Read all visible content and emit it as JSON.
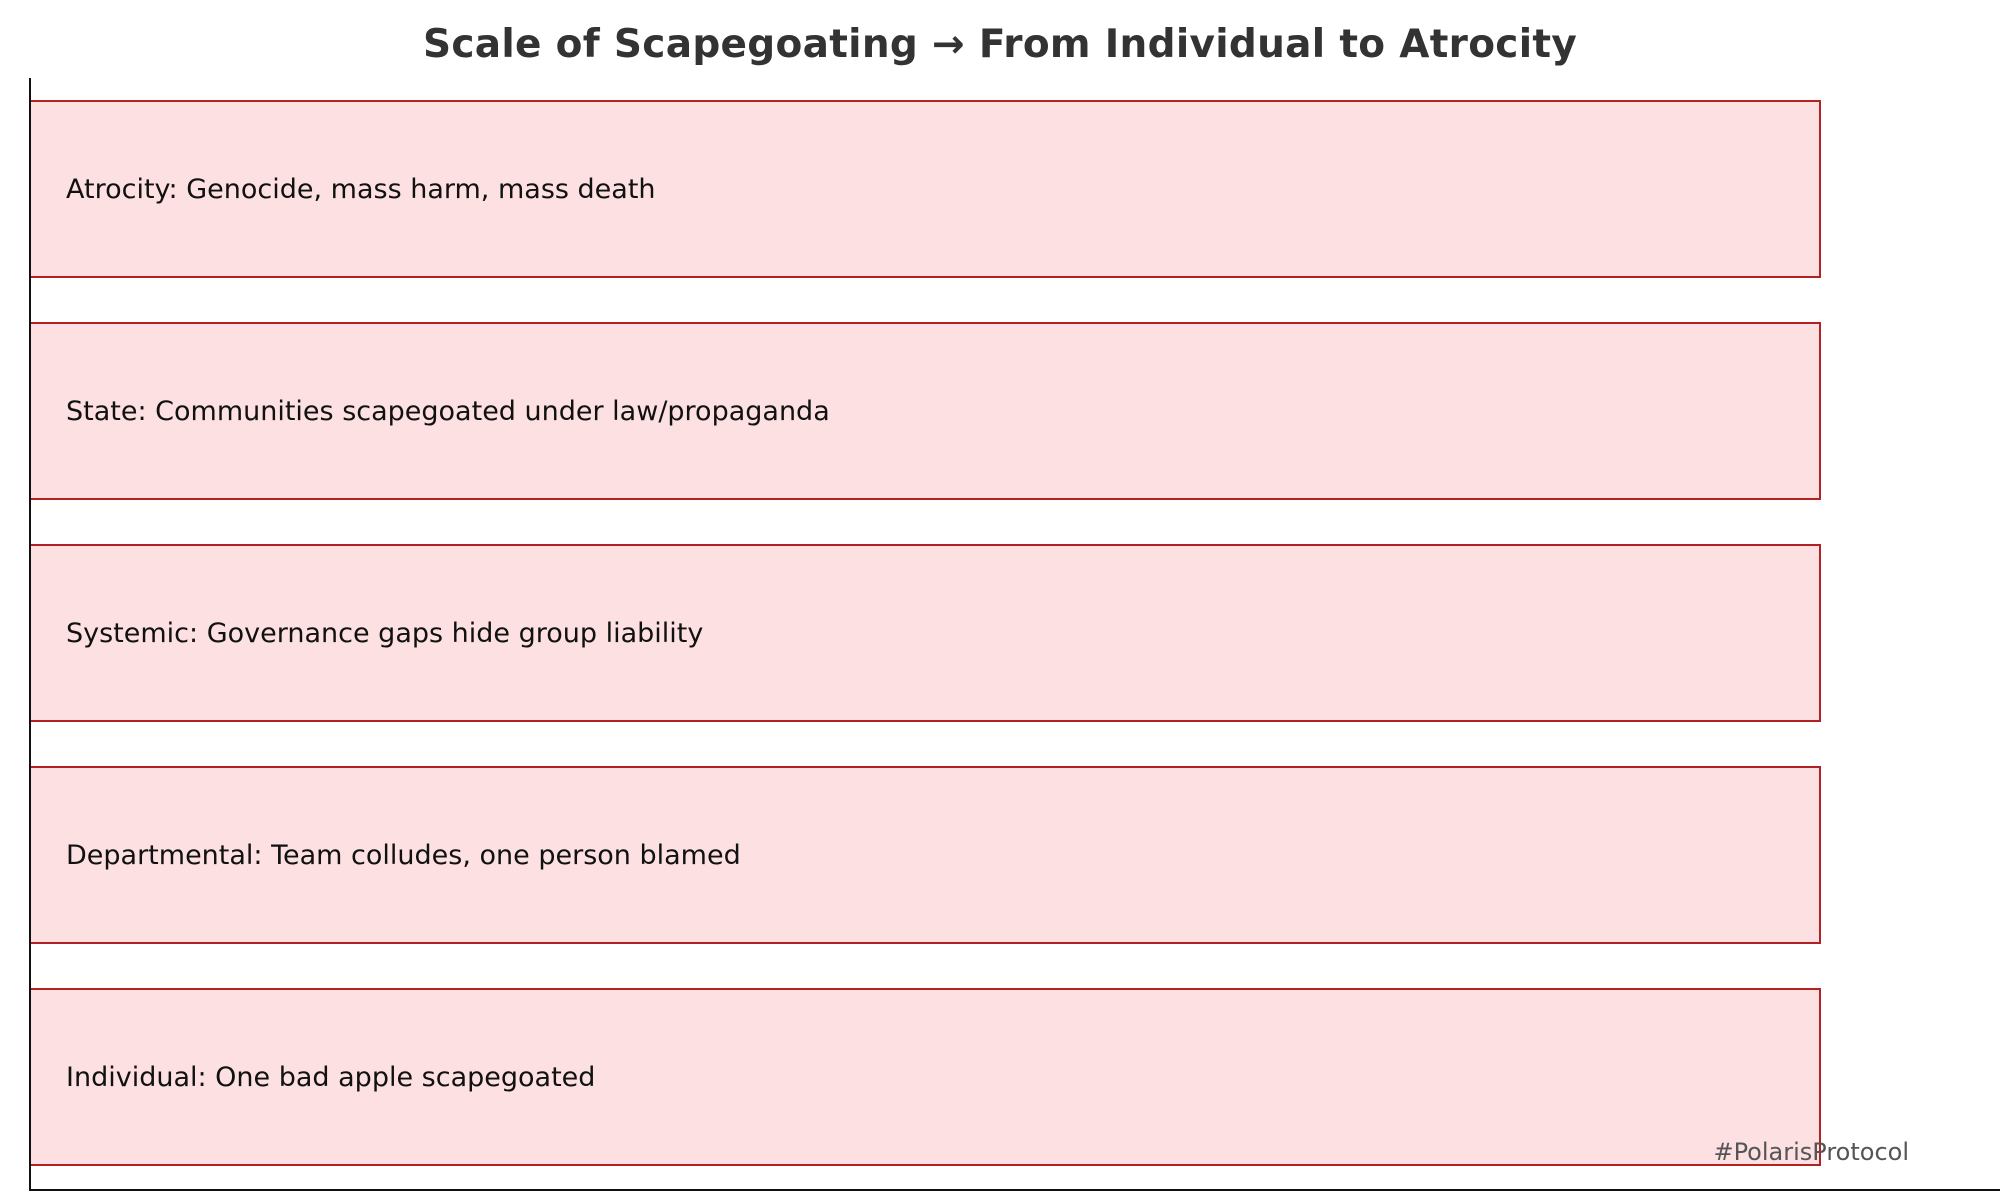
{
  "title": "Scale of Scapegoating → From Individual to Atrocity",
  "levels": [
    {
      "label": "Atrocity: Genocide, mass harm, mass death"
    },
    {
      "label": "State: Communities scapegoated under law/propaganda"
    },
    {
      "label": "Systemic: Governance gaps hide group liability"
    },
    {
      "label": "Departmental: Team colludes, one person blamed"
    },
    {
      "label": "Individual: One bad apple scapegoated"
    }
  ],
  "watermark": "#PolarisProtocol",
  "colors": {
    "box_fill": "#fde0e1",
    "box_border": "#b22222",
    "title": "#333333",
    "watermark": "#555555"
  }
}
